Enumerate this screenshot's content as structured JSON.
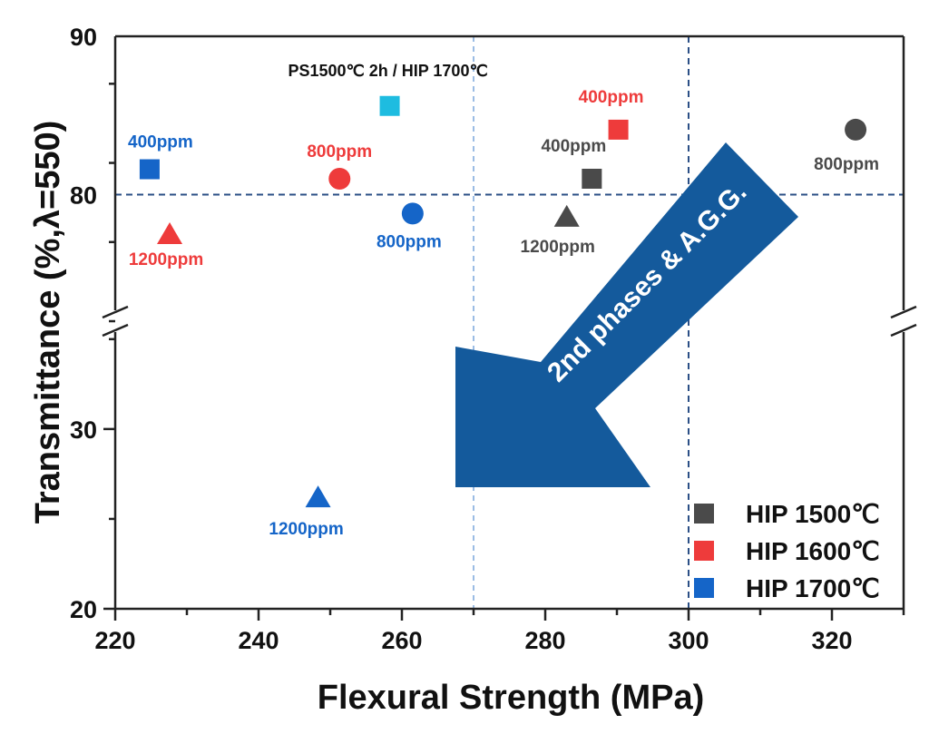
{
  "colors": {
    "HIP 1500℃": "#4a4a4a",
    "HIP 1600℃": "#ee3b3b",
    "HIP 1700℃": "#1565c8",
    "PS1500℃ 2h / HIP 1700℃": "#1ebce0",
    "arrow": "#145a9c",
    "dashed_line": "#2b4f86"
  },
  "chart_data": {
    "type": "scatter",
    "xlabel": "Flexural Strength (MPa)",
    "ylabel": "Transmittance (%,λ=550)",
    "xlim": [
      220,
      330
    ],
    "y_axis_segments": [
      {
        "range": [
          20,
          36
        ],
        "ticks": [
          20,
          30
        ]
      },
      {
        "range": [
          72,
          90
        ],
        "ticks": [
          80,
          90
        ]
      }
    ],
    "y_axis_break": true,
    "x_ticks": [
      220,
      240,
      260,
      280,
      300,
      320
    ],
    "reference_lines": {
      "x": [
        270,
        300
      ],
      "y": [
        80
      ]
    },
    "legend": {
      "position": "bottom-right",
      "entries": [
        "HIP 1500℃",
        "HIP 1600℃",
        "HIP 1700℃"
      ]
    },
    "series": [
      {
        "name": "HIP 1500℃",
        "points": [
          {
            "x": 286.5,
            "y": 81.0,
            "marker": "square",
            "label": "400ppm"
          },
          {
            "x": 323.3,
            "y": 84.1,
            "marker": "circle",
            "label": "800ppm"
          },
          {
            "x": 283.0,
            "y": 78.6,
            "marker": "triangle",
            "label": "1200ppm"
          }
        ]
      },
      {
        "name": "HIP 1600℃",
        "points": [
          {
            "x": 290.2,
            "y": 84.1,
            "marker": "square",
            "label": "400ppm"
          },
          {
            "x": 251.3,
            "y": 81.0,
            "marker": "circle",
            "label": "800ppm"
          },
          {
            "x": 227.6,
            "y": 77.5,
            "marker": "triangle",
            "label": "1200ppm"
          }
        ]
      },
      {
        "name": "HIP 1700℃",
        "points": [
          {
            "x": 224.8,
            "y": 81.6,
            "marker": "square",
            "label": "400ppm"
          },
          {
            "x": 261.5,
            "y": 78.8,
            "marker": "circle",
            "label": "800ppm"
          },
          {
            "x": 248.3,
            "y": 26.2,
            "marker": "triangle",
            "label": "1200ppm"
          }
        ]
      },
      {
        "name": "PS1500℃ 2h / HIP 1700℃",
        "points": [
          {
            "x": 258.3,
            "y": 85.6,
            "marker": "square",
            "label": "PS1500℃ 2h / HIP 1700℃"
          }
        ]
      }
    ],
    "annotations": [
      {
        "text": "2nd phases & A.G.G."
      }
    ]
  }
}
